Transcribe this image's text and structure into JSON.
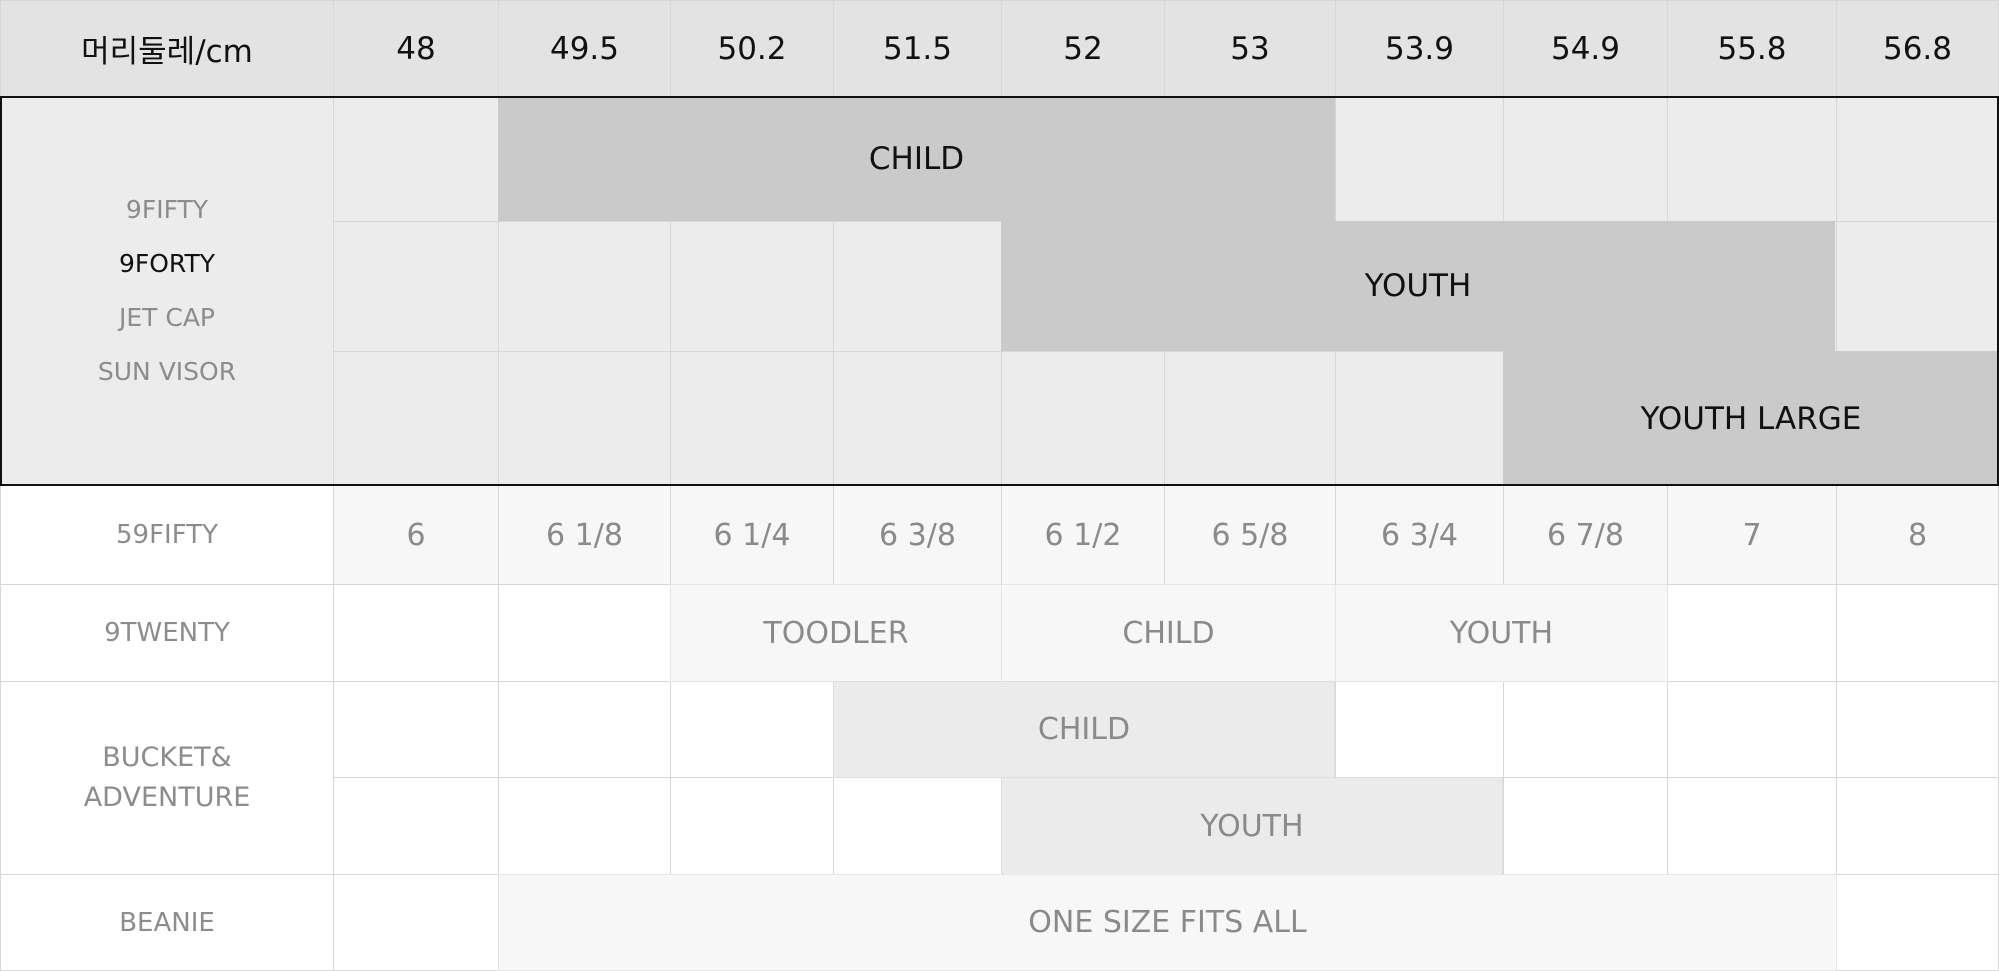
{
  "header": {
    "label": "머리둘레/cm",
    "sizes": [
      "48",
      "49.5",
      "50.2",
      "51.5",
      "52",
      "53",
      "53.9",
      "54.9",
      "55.8",
      "56.8"
    ]
  },
  "group_block": {
    "models": [
      "9FIFTY",
      "9FORTY",
      "JET CAP",
      "SUN VISOR"
    ],
    "ranges": [
      "CHILD",
      "YOUTH",
      "YOUTH LARGE"
    ]
  },
  "fifty_nine_fifty": {
    "label": "59FIFTY",
    "sizes": [
      "6",
      "6 1/8",
      "6 1/4",
      "6 3/8",
      "6 1/2",
      "6 5/8",
      "6 3/4",
      "6 7/8",
      "7",
      "8"
    ]
  },
  "nine_twenty": {
    "label": "9TWENTY",
    "ranges": [
      "TOODLER",
      "CHILD",
      "YOUTH"
    ]
  },
  "bucket_adventure": {
    "label_lines": [
      "BUCKET&",
      "ADVENTURE"
    ],
    "ranges": [
      "CHILD",
      "YOUTH"
    ]
  },
  "beanie": {
    "label": "BEANIE",
    "range": "ONE SIZE FITS ALL"
  },
  "colors": {
    "header_bg": "#e3e3e3",
    "block_bg": "#ececec",
    "highlight_bg": "#cacacb",
    "light_span_bg": "#ebebeb",
    "muted_text": "#8c8c8c",
    "dark_text": "#111111"
  }
}
